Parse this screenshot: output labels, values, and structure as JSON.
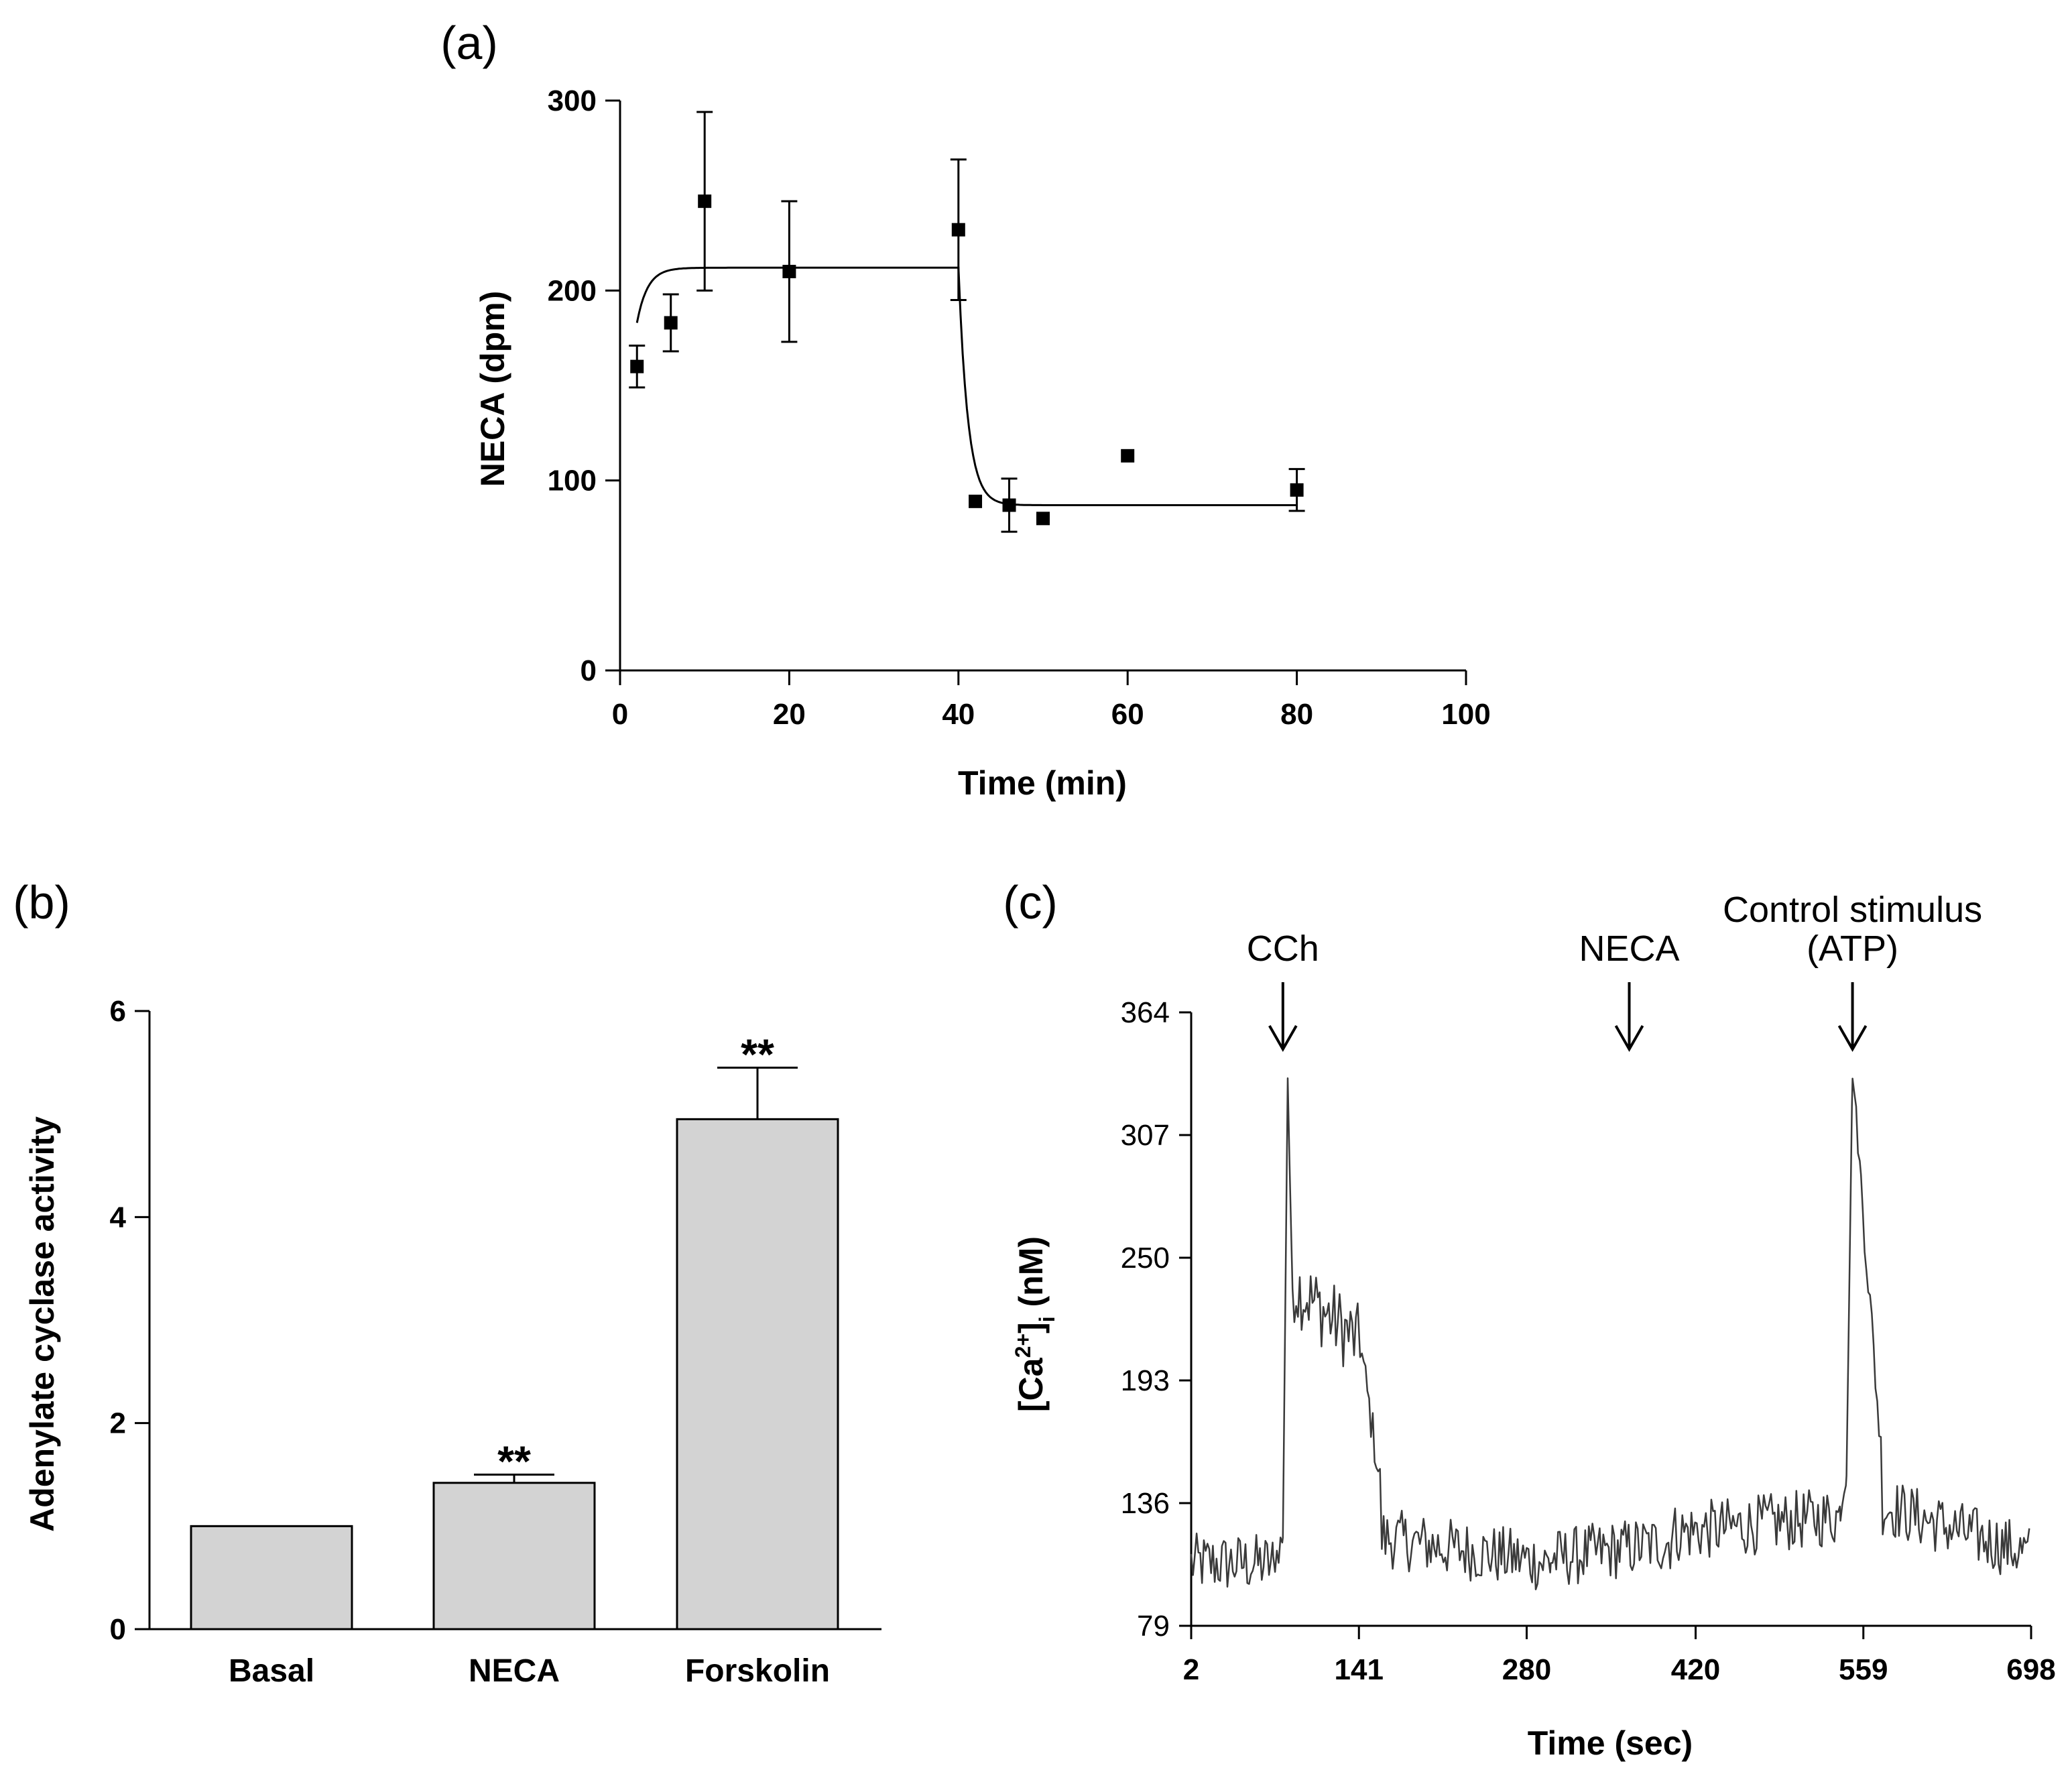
{
  "chart_data": [
    {
      "panel": "(a)",
      "type": "scatter",
      "xlabel": "Time (min)",
      "ylabel": "NECA (dpm)",
      "xlim": [
        0,
        100
      ],
      "ylim": [
        0,
        300
      ],
      "xticks": [
        0,
        20,
        40,
        60,
        80,
        100
      ],
      "yticks": [
        0,
        100,
        200,
        300
      ],
      "points": [
        {
          "x": 2,
          "y": 160,
          "err": 11
        },
        {
          "x": 6,
          "y": 183,
          "err": 15
        },
        {
          "x": 10,
          "y": 247,
          "err": 47
        },
        {
          "x": 20,
          "y": 210,
          "err": 37
        },
        {
          "x": 40,
          "y": 232,
          "err": 37
        },
        {
          "x": 42,
          "y": 89,
          "err": 0
        },
        {
          "x": 46,
          "y": 87,
          "err": 14
        },
        {
          "x": 50,
          "y": 80,
          "err": 0
        },
        {
          "x": 60,
          "y": 113,
          "err": 0
        },
        {
          "x": 80,
          "y": 95,
          "err": 11
        }
      ],
      "fit": {
        "start": 183,
        "plateau": 212,
        "rise_rate": 0.8,
        "drop_at": 40,
        "low": 87,
        "drop_rate": 0.9
      }
    },
    {
      "panel": "(b)",
      "type": "bar",
      "ylabel": "Adenylate cyclase activity",
      "categories": [
        "Basal",
        "NECA",
        "Forskolin"
      ],
      "values": [
        1.0,
        1.42,
        4.95
      ],
      "errors": [
        0,
        0.08,
        0.5
      ],
      "annotations": [
        "",
        "**",
        "**"
      ],
      "ylim": [
        0,
        6
      ],
      "yticks": [
        0,
        2,
        4,
        6
      ],
      "bar_color": "#d3d3d3"
    },
    {
      "panel": "(c)",
      "type": "line",
      "xlabel": "Time (sec)",
      "ylabel_main": "[Ca",
      "ylabel_sup": "2+",
      "ylabel_close": "]",
      "ylabel_sub": "i",
      "ylabel_unit": " (nM)",
      "xlim": [
        2,
        698
      ],
      "ylim": [
        79,
        364
      ],
      "xticks": [
        2,
        141,
        280,
        420,
        559,
        698
      ],
      "yticks": [
        79,
        136,
        193,
        250,
        307,
        364
      ],
      "events": [
        {
          "label": "CCh",
          "label2": "",
          "time": 78
        },
        {
          "label": "NECA",
          "label2": "",
          "time": 365
        },
        {
          "label": "Control stimulus",
          "label2": "(ATP)",
          "time": 550
        }
      ],
      "trace": {
        "segments": [
          {
            "t0": 2,
            "t1": 70,
            "v0": 108,
            "v1": 108,
            "noise": 14
          },
          {
            "t0": 70,
            "t1": 78,
            "v0": 108,
            "v1": 120,
            "noise": 8
          },
          {
            "t0": 78,
            "t1": 82,
            "v0": 120,
            "v1": 334,
            "noise": 0
          },
          {
            "t0": 82,
            "t1": 86,
            "v0": 334,
            "v1": 230,
            "noise": 3
          },
          {
            "t0": 86,
            "t1": 142,
            "v0": 238,
            "v1": 210,
            "noise": 18
          },
          {
            "t0": 142,
            "t1": 160,
            "v0": 210,
            "v1": 140,
            "noise": 10
          },
          {
            "t0": 160,
            "t1": 300,
            "v0": 120,
            "v1": 108,
            "noise": 14
          },
          {
            "t0": 300,
            "t1": 400,
            "v0": 110,
            "v1": 118,
            "noise": 14
          },
          {
            "t0": 400,
            "t1": 540,
            "v0": 122,
            "v1": 130,
            "noise": 14
          },
          {
            "t0": 540,
            "t1": 545,
            "v0": 132,
            "v1": 150,
            "noise": 5
          },
          {
            "t0": 545,
            "t1": 550,
            "v0": 150,
            "v1": 338,
            "noise": 2
          },
          {
            "t0": 550,
            "t1": 557,
            "v0": 338,
            "v1": 285,
            "noise": 6
          },
          {
            "t0": 557,
            "t1": 575,
            "v0": 285,
            "v1": 150,
            "noise": 10
          },
          {
            "t0": 575,
            "t1": 698,
            "v0": 135,
            "v1": 112,
            "noise": 14
          }
        ]
      }
    }
  ]
}
